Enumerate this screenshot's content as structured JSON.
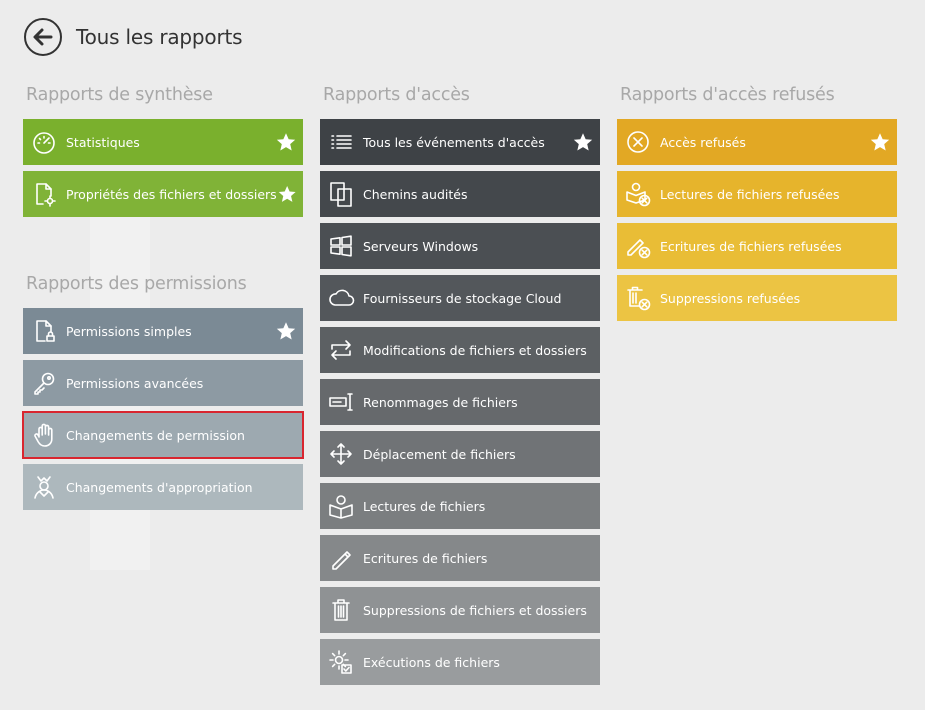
{
  "header": {
    "title": "Tous les rapports",
    "back_icon": "back-arrow-icon"
  },
  "columns": {
    "synthese": {
      "title": "Rapports de synthèse",
      "items": [
        {
          "label": "Statistiques",
          "icon": "speedometer-icon",
          "starred": true,
          "color": "#7ab02d"
        },
        {
          "label": "Propriétés des fichiers et dossiers",
          "icon": "file-settings-icon",
          "starred": true,
          "color": "#80b337"
        }
      ]
    },
    "permissions": {
      "title": "Rapports des permissions",
      "items": [
        {
          "label": "Permissions simples",
          "icon": "file-lock-icon",
          "starred": true,
          "color": "#7b8a95"
        },
        {
          "label": "Permissions avancées",
          "icon": "key-icon",
          "starred": false,
          "color": "#8d9aa3"
        },
        {
          "label": "Changements de permission",
          "icon": "hand-icon",
          "starred": false,
          "color": "#9da9b0",
          "selected": true
        },
        {
          "label": "Changements d'appropriation",
          "icon": "owner-icon",
          "starred": false,
          "color": "#adb8bd"
        }
      ]
    },
    "acces": {
      "title": "Rapports d'accès",
      "items": [
        {
          "label": "Tous les événements d'accès",
          "icon": "list-icon",
          "starred": true,
          "color": "#3e4246"
        },
        {
          "label": "Chemins audités",
          "icon": "copy-icon",
          "starred": false,
          "color": "#44484c"
        },
        {
          "label": "Serveurs Windows",
          "icon": "windows-icon",
          "starred": false,
          "color": "#4b4f53"
        },
        {
          "label": "Fournisseurs de stockage Cloud",
          "icon": "cloud-icon",
          "starred": false,
          "color": "#53575b"
        },
        {
          "label": "Modifications de fichiers et dossiers",
          "icon": "modify-icon",
          "starred": false,
          "color": "#5c6063"
        },
        {
          "label": "Renommages de fichiers",
          "icon": "rename-icon",
          "starred": false,
          "color": "#66696c"
        },
        {
          "label": "Déplacement de fichiers",
          "icon": "move-icon",
          "starred": false,
          "color": "#707376"
        },
        {
          "label": "Lectures de fichiers",
          "icon": "read-icon",
          "starred": false,
          "color": "#7b7e80"
        },
        {
          "label": "Ecritures de fichiers",
          "icon": "pencil-icon",
          "starred": false,
          "color": "#85888a"
        },
        {
          "label": "Suppressions de fichiers et dossiers",
          "icon": "trash-icon",
          "starred": false,
          "color": "#8f9294"
        },
        {
          "label": "Exécutions de fichiers",
          "icon": "gear-check-icon",
          "starred": false,
          "color": "#999c9e"
        }
      ]
    },
    "refuses": {
      "title": "Rapports d'accès refusés",
      "items": [
        {
          "label": "Accès refusés",
          "icon": "circle-x-icon",
          "starred": true,
          "color": "#e2a824"
        },
        {
          "label": "Lectures de fichiers refusées",
          "icon": "read-denied-icon",
          "starred": false,
          "color": "#e6b42c"
        },
        {
          "label": "Ecritures de fichiers refusées",
          "icon": "write-denied-icon",
          "starred": false,
          "color": "#e9bd36"
        },
        {
          "label": "Suppressions refusées",
          "icon": "delete-denied-icon",
          "starred": false,
          "color": "#ecc443"
        }
      ]
    }
  }
}
